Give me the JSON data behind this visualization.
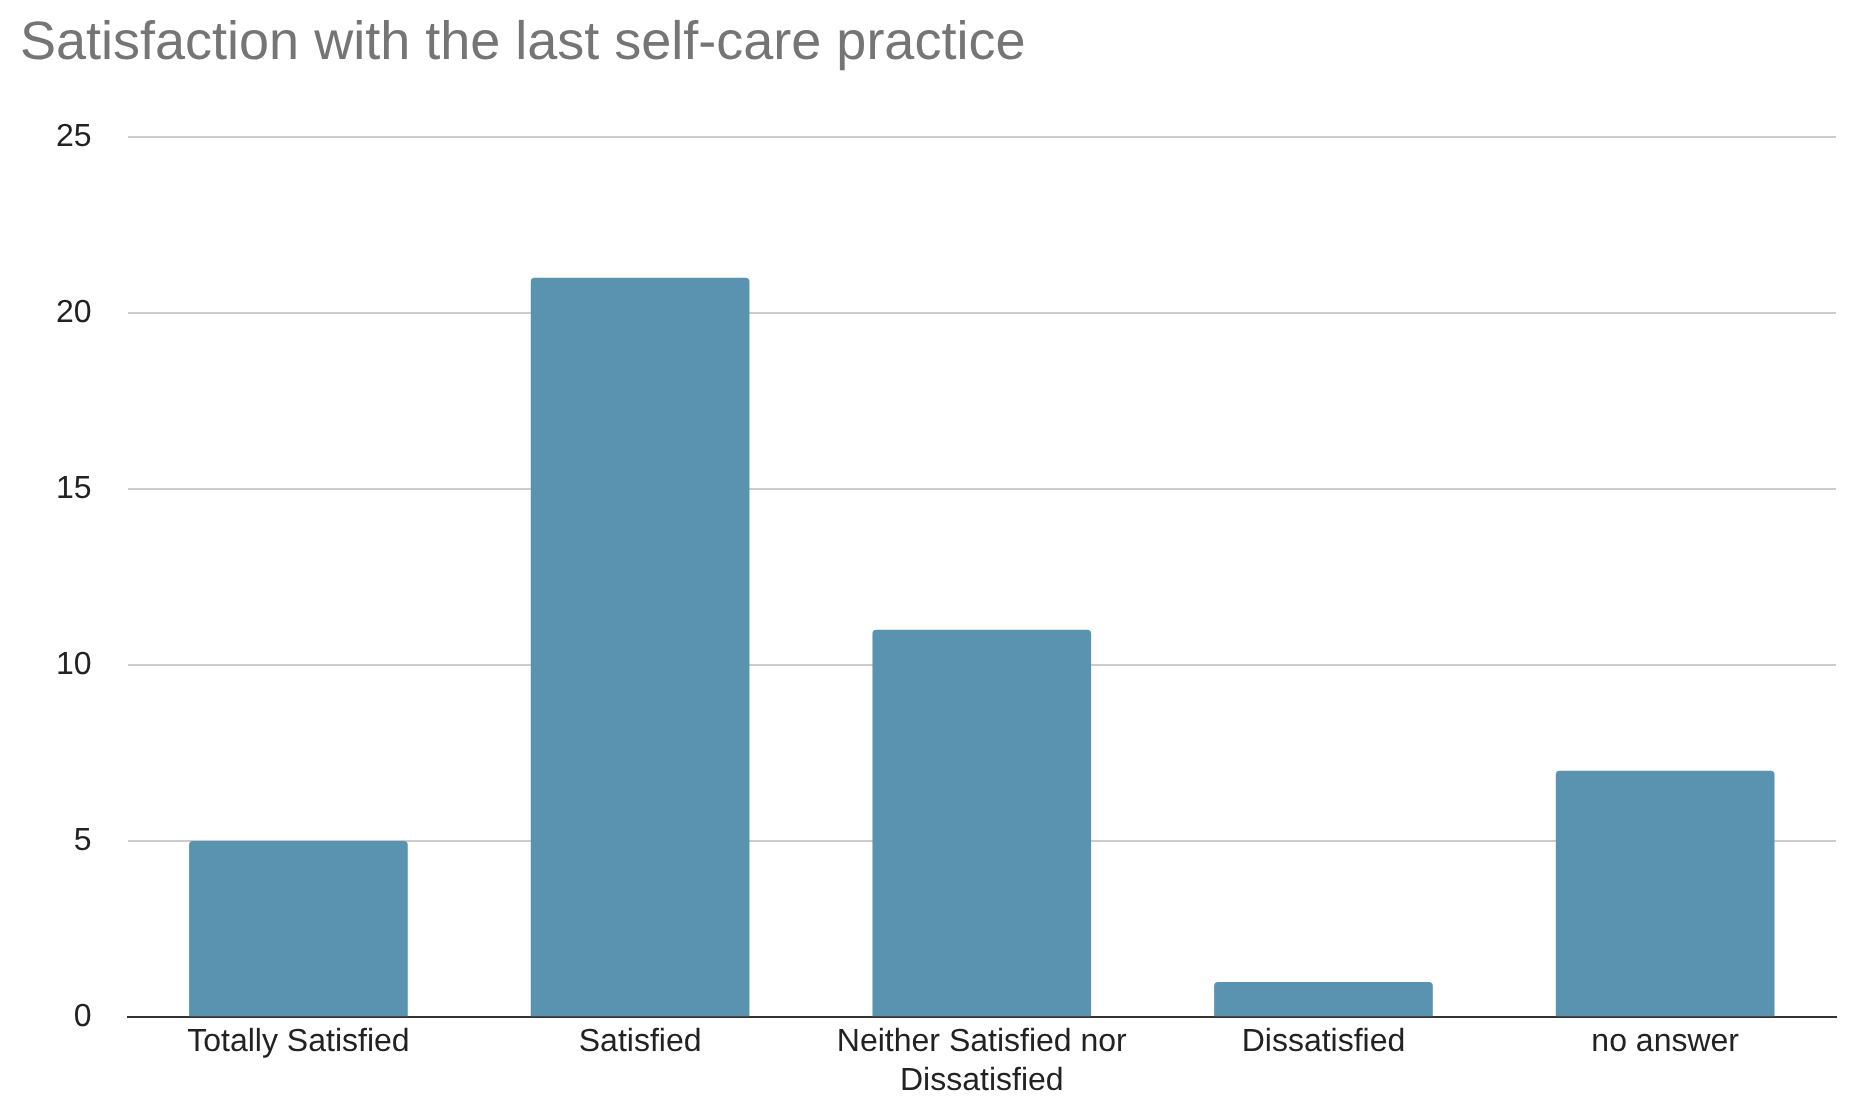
{
  "chart_data": {
    "type": "bar",
    "title": "Satisfaction with the last self-care practice",
    "categories": [
      "Totally Satisfied",
      "Satisfied",
      "Neither Satisfied nor Dissatisfied",
      "Dissatisfied",
      "no answer"
    ],
    "values": [
      5,
      21,
      11,
      1,
      7
    ],
    "color": "#5a93b0",
    "ylim": [
      0,
      25
    ],
    "yticks": [
      0,
      5,
      10,
      15,
      20,
      25
    ],
    "grid": "y"
  }
}
